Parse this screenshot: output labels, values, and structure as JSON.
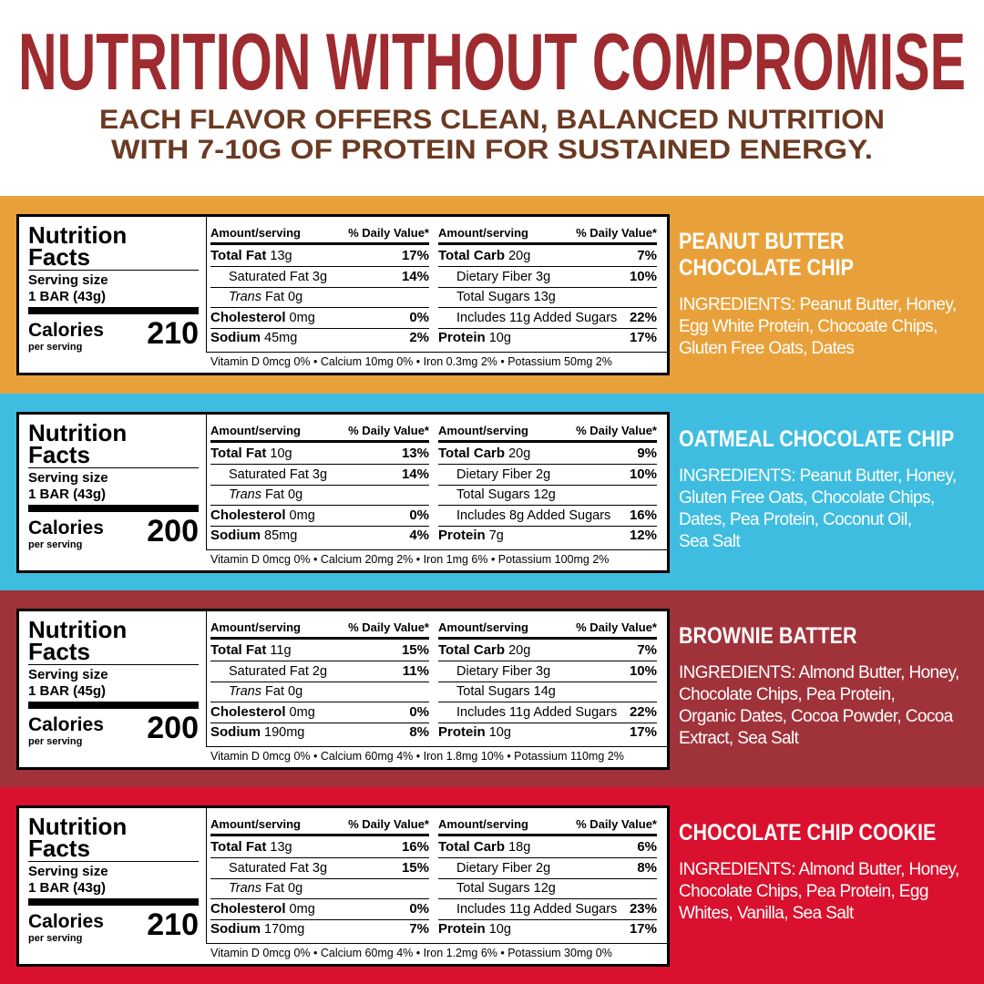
{
  "header": {
    "title": "NUTRITION WITHOUT COMPROMISE",
    "subtitle_lines": [
      "EACH FLAVOR OFFERS CLEAN, BALANCED NUTRITION",
      "WITH 7-10G OF PROTEIN FOR SUSTAINED ENERGY."
    ]
  },
  "labels": {
    "nutrition": "Nutrition",
    "facts": "Facts",
    "serving_size": "Serving size",
    "calories": "Calories",
    "per_serving": "per serving",
    "amount_serving": "Amount/serving",
    "daily_value": "% Daily Value*"
  },
  "products": [
    {
      "color": "#e8a13a",
      "name_lines": [
        "PEANUT BUTTER",
        "CHOCOLATE CHIP"
      ],
      "ingredient_lines": [
        "INGREDIENTS: Peanut Butter, Honey,",
        "Egg White Protein, Chocoate Chips,",
        "Gluten Free Oats, Dates"
      ],
      "serving": "1 BAR (43g)",
      "calories": "210",
      "left_rows": [
        {
          "label": "Total Fat",
          "amount": "13g",
          "dv": "17%"
        },
        {
          "label": "Saturated Fat",
          "amount": "3g",
          "dv": "14%"
        },
        {
          "label_italic": "Trans",
          "label": "Fat",
          "amount": "0g"
        },
        {
          "label": "Cholesterol",
          "amount": "0mg",
          "dv": "0%"
        },
        {
          "label": "Sodium",
          "amount": "45mg",
          "dv": "2%"
        }
      ],
      "right_rows": [
        {
          "label": "Total Carb",
          "amount": "20g",
          "dv": "7%"
        },
        {
          "label": "Dietary Fiber",
          "amount": "3g",
          "dv": "10%"
        },
        {
          "label": "Total Sugars",
          "amount": "13g"
        },
        {
          "label": "Includes 11g Added Sugars",
          "dv": "22%"
        },
        {
          "label": "Protein",
          "amount": "10g",
          "dv": "17%"
        }
      ],
      "footer": "Vitamin D 0mcg 0% • Calcium 10mg 0% • Iron 0.3mg 2% • Potassium 50mg 2%"
    },
    {
      "color": "#3fbde0",
      "name_lines": [
        "OATMEAL CHOCOLATE CHIP"
      ],
      "ingredient_lines": [
        "INGREDIENTS: Peanut Butter, Honey,",
        "Gluten Free Oats, Chocolate Chips,",
        "Dates, Pea Protein, Coconut Oil,",
        "Sea Salt"
      ],
      "serving": "1 BAR (43g)",
      "calories": "200",
      "left_rows": [
        {
          "label": "Total Fat",
          "amount": "10g",
          "dv": "13%"
        },
        {
          "label": "Saturated Fat",
          "amount": "3g",
          "dv": "14%"
        },
        {
          "label_italic": "Trans",
          "label": "Fat",
          "amount": "0g"
        },
        {
          "label": "Cholesterol",
          "amount": "0mg",
          "dv": "0%"
        },
        {
          "label": "Sodium",
          "amount": "85mg",
          "dv": "4%"
        }
      ],
      "right_rows": [
        {
          "label": "Total Carb",
          "amount": "20g",
          "dv": "9%"
        },
        {
          "label": "Dietary Fiber",
          "amount": "2g",
          "dv": "10%"
        },
        {
          "label": "Total Sugars",
          "amount": "12g"
        },
        {
          "label": "Includes 8g Added Sugars",
          "dv": "16%"
        },
        {
          "label": "Protein",
          "amount": "7g",
          "dv": "12%"
        }
      ],
      "footer": "Vitamin D 0mcg 0% • Calcium 20mg 2% • Iron 1mg 6% • Potassium 100mg 2%"
    },
    {
      "color": "#a0323a",
      "name_lines": [
        "BROWNIE BATTER"
      ],
      "ingredient_lines": [
        "INGREDIENTS: Almond Butter, Honey,",
        "Chocolate Chips, Pea Protein,",
        "Organic Dates, Cocoa Powder, Cocoa",
        "Extract, Sea Salt"
      ],
      "serving": "1 BAR (45g)",
      "calories": "200",
      "left_rows": [
        {
          "label": "Total Fat",
          "amount": "11g",
          "dv": "15%"
        },
        {
          "label": "Saturated Fat",
          "amount": "2g",
          "dv": "11%"
        },
        {
          "label_italic": "Trans",
          "label": "Fat",
          "amount": "0g"
        },
        {
          "label": "Cholesterol",
          "amount": "0mg",
          "dv": "0%"
        },
        {
          "label": "Sodium",
          "amount": "190mg",
          "dv": "8%"
        }
      ],
      "right_rows": [
        {
          "label": "Total Carb",
          "amount": "20g",
          "dv": "7%"
        },
        {
          "label": "Dietary Fiber",
          "amount": "3g",
          "dv": "10%"
        },
        {
          "label": "Total Sugars",
          "amount": "14g"
        },
        {
          "label": "Includes 11g Added Sugars",
          "dv": "22%"
        },
        {
          "label": "Protein",
          "amount": "10g",
          "dv": "17%"
        }
      ],
      "footer": "Vitamin D 0mcg 0% • Calcium 60mg 4% • Iron 1.8mg 10% • Potassium 110mg 2%"
    },
    {
      "color": "#d9112e",
      "name_lines": [
        "CHOCOLATE CHIP COOKIE"
      ],
      "ingredient_lines": [
        "INGREDIENTS: Almond Butter, Honey,",
        "Chocolate Chips, Pea Protein, Egg",
        "Whites, Vanilla, Sea Salt"
      ],
      "serving": "1 BAR (43g)",
      "calories": "210",
      "left_rows": [
        {
          "label": "Total Fat",
          "amount": "13g",
          "dv": "16%"
        },
        {
          "label": "Saturated Fat",
          "amount": "3g",
          "dv": "15%"
        },
        {
          "label_italic": "Trans",
          "label": "Fat",
          "amount": "0g"
        },
        {
          "label": "Cholesterol",
          "amount": "0mg",
          "dv": "0%"
        },
        {
          "label": "Sodium",
          "amount": "170mg",
          "dv": "7%"
        }
      ],
      "right_rows": [
        {
          "label": "Total Carb",
          "amount": "18g",
          "dv": "6%"
        },
        {
          "label": "Dietary Fiber",
          "amount": "2g",
          "dv": "8%"
        },
        {
          "label": "Total Sugars",
          "amount": "12g"
        },
        {
          "label": "Includes 11g Added Sugars",
          "dv": "23%"
        },
        {
          "label": "Protein",
          "amount": "10g",
          "dv": "17%"
        }
      ],
      "footer": "Vitamin D 0mcg 0% • Calcium 60mg 4% • Iron 1.2mg 6% • Potassium 30mg 0%"
    }
  ]
}
